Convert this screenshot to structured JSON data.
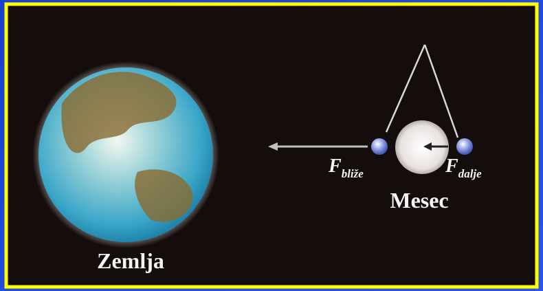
{
  "earth": {
    "label": "Zemlja"
  },
  "moon": {
    "label": "Mesec"
  },
  "forces": [
    {
      "symbol": "F",
      "subscript": "bliže"
    },
    {
      "symbol": "F",
      "subscript": "dalje"
    }
  ]
}
